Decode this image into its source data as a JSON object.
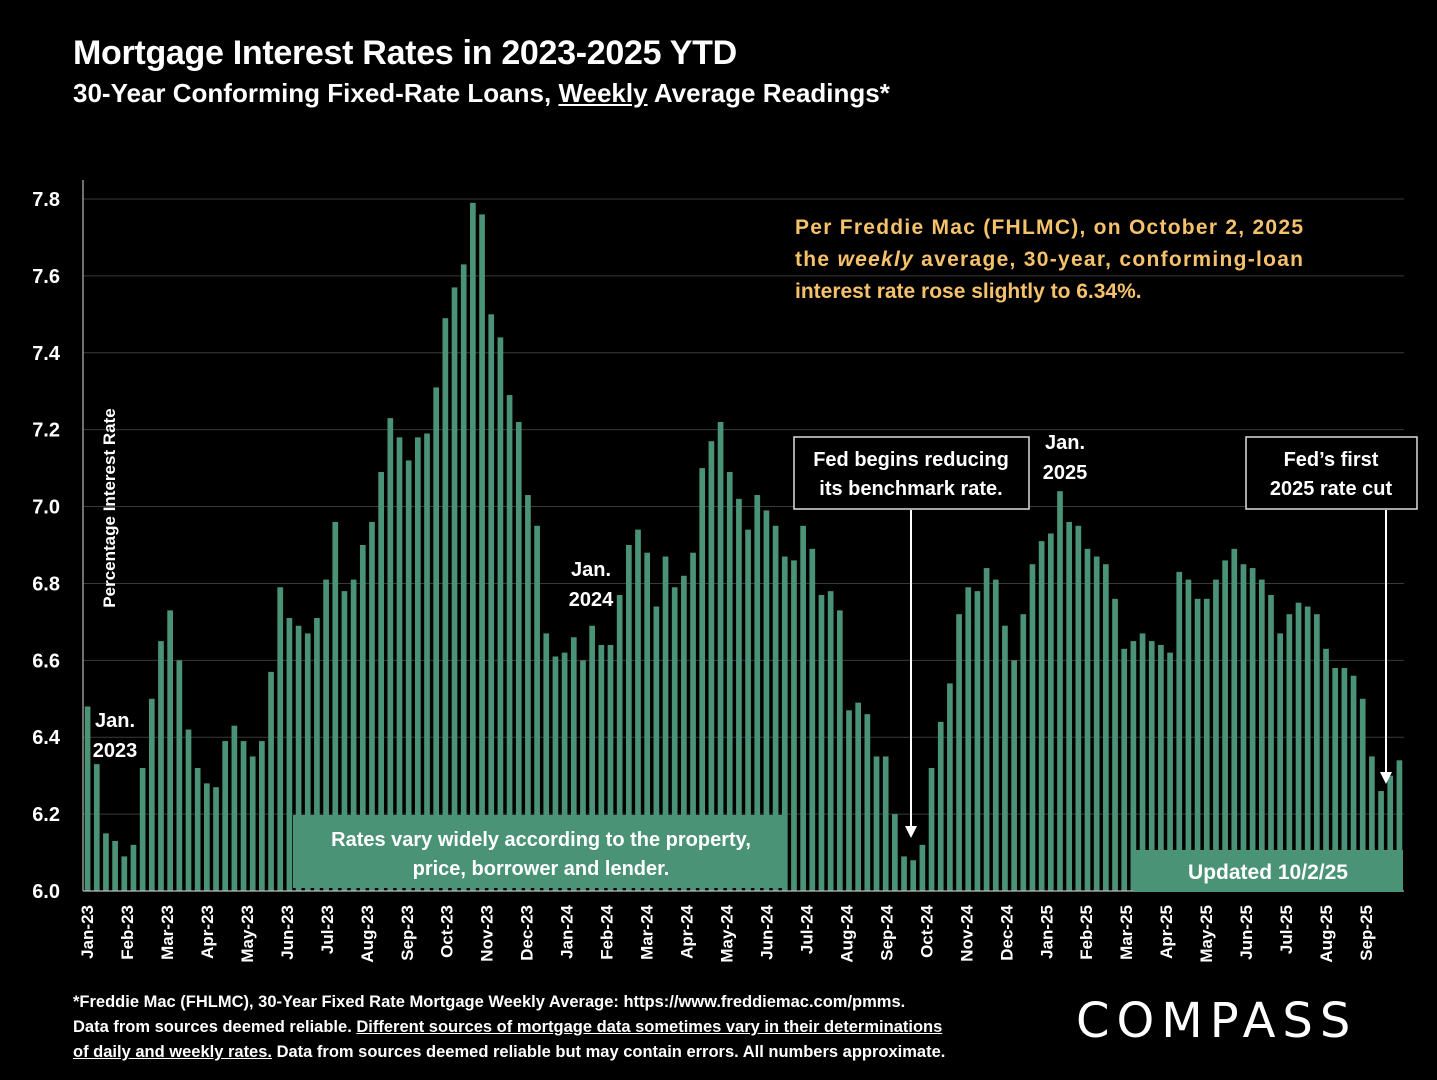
{
  "title": "Mortgage Interest Rates in 2023-2025 YTD",
  "subtitle": {
    "before": "30-Year Conforming Fixed-Rate Loans, ",
    "underlined": "Weekly",
    "after": " Average Readings*"
  },
  "footnote": {
    "line1": "*Freddie Mac (FHLMC), 30-Year Fixed Rate Mortgage Weekly Average:  https://www.freddiemac.com/pmms.",
    "line2a": "Data from sources deemed reliable. ",
    "line2u": "Different sources of mortgage data sometimes vary in their determinations",
    "line3u": "of daily and weekly rates.",
    "line3b": " Data from sources deemed reliable but may contain errors. All numbers approximate."
  },
  "logo": "COMPASS",
  "colors": {
    "bar": "#4b9377",
    "background": "#000000",
    "callout_text": "#f5c26b",
    "grid": "#3a3a3a"
  },
  "chart_data": {
    "type": "bar",
    "ylabel": "Percentage Interest  Rate",
    "ylim": [
      6.0,
      7.8
    ],
    "yticks": [
      "6.0",
      "6.2",
      "6.4",
      "6.6",
      "6.8",
      "7.0",
      "7.2",
      "7.4",
      "7.6",
      "7.8"
    ],
    "grid": true,
    "x_labels": [
      "Jan-23",
      "Feb-23",
      "Mar-23",
      "Apr-23",
      "May-23",
      "Jun-23",
      "Jul-23",
      "Aug-23",
      "Sep-23",
      "Oct-23",
      "Nov-23",
      "Dec-23",
      "Jan-24",
      "Feb-24",
      "Mar-24",
      "Apr-24",
      "May-24",
      "Jun-24",
      "Jul-24",
      "Aug-24",
      "Sep-24",
      "Oct-24",
      "Nov-24",
      "Dec-24",
      "Jan-25",
      "Feb-25",
      "Mar-25",
      "Apr-25",
      "May-25",
      "Jun-25",
      "Jul-25",
      "Aug-25",
      "Sep-25"
    ],
    "values": [
      6.48,
      6.33,
      6.15,
      6.13,
      6.09,
      6.12,
      6.32,
      6.5,
      6.65,
      6.73,
      6.6,
      6.42,
      6.32,
      6.28,
      6.27,
      6.39,
      6.43,
      6.39,
      6.35,
      6.39,
      6.57,
      6.79,
      6.71,
      6.69,
      6.67,
      6.71,
      6.81,
      6.96,
      6.78,
      6.81,
      6.9,
      6.96,
      7.09,
      7.23,
      7.18,
      7.12,
      7.18,
      7.19,
      7.31,
      7.49,
      7.57,
      7.63,
      7.79,
      7.76,
      7.5,
      7.44,
      7.29,
      7.22,
      7.03,
      6.95,
      6.67,
      6.61,
      6.62,
      6.66,
      6.6,
      6.69,
      6.64,
      6.64,
      6.77,
      6.9,
      6.94,
      6.88,
      6.74,
      6.87,
      6.79,
      6.82,
      6.88,
      7.1,
      7.17,
      7.22,
      7.09,
      7.02,
      6.94,
      7.03,
      6.99,
      6.95,
      6.87,
      6.86,
      6.95,
      6.89,
      6.77,
      6.78,
      6.73,
      6.47,
      6.49,
      6.46,
      6.35,
      6.35,
      6.2,
      6.09,
      6.08,
      6.12,
      6.32,
      6.44,
      6.54,
      6.72,
      6.79,
      6.78,
      6.84,
      6.81,
      6.69,
      6.6,
      6.72,
      6.85,
      6.91,
      6.93,
      7.04,
      6.96,
      6.95,
      6.89,
      6.87,
      6.85,
      6.76,
      6.63,
      6.65,
      6.67,
      6.65,
      6.64,
      6.62,
      6.83,
      6.81,
      6.76,
      6.76,
      6.81,
      6.86,
      6.89,
      6.85,
      6.84,
      6.81,
      6.77,
      6.67,
      6.72,
      6.75,
      6.74,
      6.72,
      6.63,
      6.58,
      6.58,
      6.56,
      6.5,
      6.35,
      6.26,
      6.3,
      6.34
    ],
    "annotations": {
      "jan2023": "Jan.\n2023",
      "jan2024": "Jan.\n2024",
      "jan2025": "Jan.\n2025",
      "callout": "Per Freddie Mac (FHLMC), on October 2, 2025 the weekly average, 30-year, conforming-loan interest rate rose slightly to 6.34%.",
      "callout_lines": [
        [
          "Per Freddie Mac (FHLMC), on October 2, 2025"
        ],
        [
          "the ",
          "weekly",
          " average, 30-year, conforming-loan"
        ],
        [
          "interest rate rose slightly to 6.34%."
        ]
      ],
      "fed_reducing": "Fed begins reducing\nits benchmark rate.",
      "fed_cut": "Fed’s first\n2025 rate cut",
      "rates_vary": "Rates vary widely according to the property,\nprice, borrower and lender.",
      "updated": "Updated 10/2/25"
    }
  }
}
